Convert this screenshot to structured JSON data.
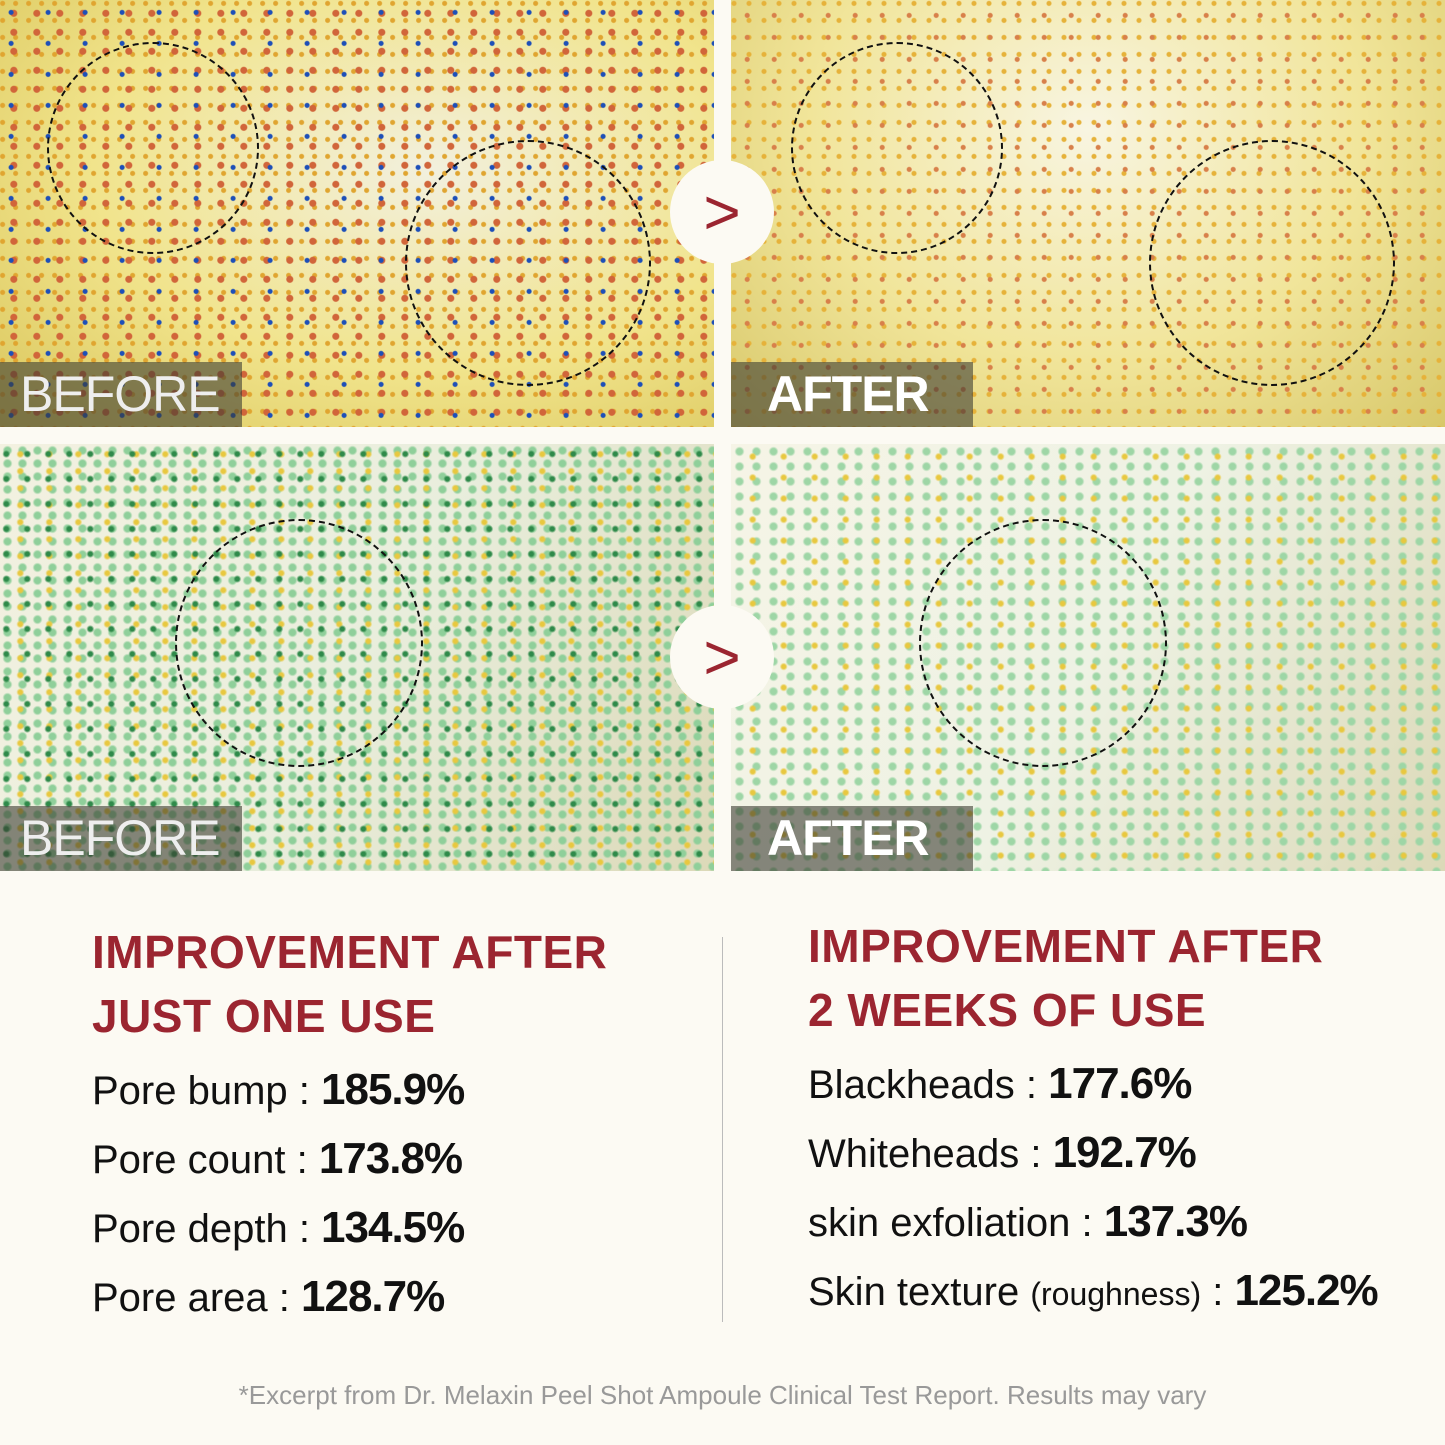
{
  "panels": {
    "before_label": "BEFORE",
    "after_label": "AFTER",
    "arrow_glyph": ">"
  },
  "left": {
    "heading_line1": "IMPROVEMENT AFTER",
    "heading_line2": "JUST ONE USE",
    "stats": [
      {
        "label": "Pore bump",
        "value": "185.9%"
      },
      {
        "label": "Pore count",
        "value": "173.8%"
      },
      {
        "label": "Pore depth",
        "value": "134.5%"
      },
      {
        "label": "Pore area",
        "value": "128.7%"
      }
    ]
  },
  "right": {
    "heading_line1": "IMPROVEMENT AFTER",
    "heading_line2": "2 WEEKS OF USE",
    "stats": [
      {
        "label": "Blackheads",
        "value": "177.6%"
      },
      {
        "label": "Whiteheads",
        "value": "192.7%"
      },
      {
        "label": "skin exfoliation",
        "value": "137.3%"
      },
      {
        "label": "Skin texture",
        "note": "(roughness)",
        "value": "125.2%"
      }
    ]
  },
  "footnote": "*Excerpt from Dr. Melaxin Peel Shot Ampoule Clinical Test Report. Results may vary",
  "colors": {
    "accent": "#9b2530",
    "background": "#fcfaf3"
  }
}
